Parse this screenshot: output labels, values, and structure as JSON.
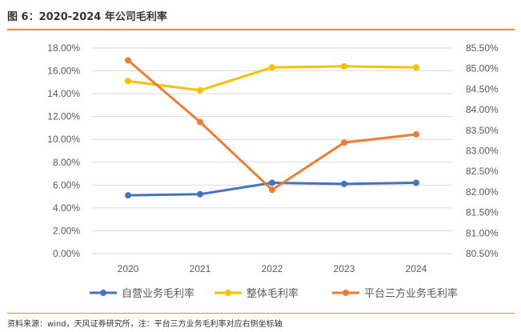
{
  "figure": {
    "title": "图 6：2020-2024 年公司毛利率",
    "source": "资料来源：wind，天风证券研究所，注：平台三方业务毛利率对应右侧坐标轴"
  },
  "chart_data": {
    "type": "line",
    "title": "2020-2024 年公司毛利率",
    "categories": [
      "2020",
      "2021",
      "2022",
      "2023",
      "2024"
    ],
    "left_axis": {
      "ylim": [
        0,
        18
      ],
      "ticks": [
        0,
        2,
        4,
        6,
        8,
        10,
        12,
        14,
        16,
        18
      ],
      "tick_labels": [
        "0.00%",
        "2.00%",
        "4.00%",
        "6.00%",
        "8.00%",
        "10.00%",
        "12.00%",
        "14.00%",
        "16.00%",
        "18.00%"
      ]
    },
    "right_axis": {
      "ylim": [
        80.5,
        85.5
      ],
      "ticks": [
        80.5,
        81.0,
        81.5,
        82.0,
        82.5,
        83.0,
        83.5,
        84.0,
        84.5,
        85.0,
        85.5
      ],
      "tick_labels": [
        "80.50%",
        "81.00%",
        "81.50%",
        "82.00%",
        "82.50%",
        "83.00%",
        "83.50%",
        "84.00%",
        "84.50%",
        "85.00%",
        "85.50%"
      ]
    },
    "series": [
      {
        "name": "自营业务毛利率",
        "axis": "left",
        "color": "#4472c4",
        "values": [
          5.1,
          5.2,
          6.2,
          6.1,
          6.2
        ]
      },
      {
        "name": "整体毛利率",
        "axis": "left",
        "color": "#f5c000",
        "values": [
          15.1,
          14.3,
          16.3,
          16.4,
          16.3
        ]
      },
      {
        "name": "平台三方业务毛利率",
        "axis": "right",
        "color": "#ed7d31",
        "values": [
          85.2,
          83.7,
          82.05,
          83.2,
          83.4
        ]
      }
    ],
    "grid": true,
    "legend_position": "bottom"
  }
}
